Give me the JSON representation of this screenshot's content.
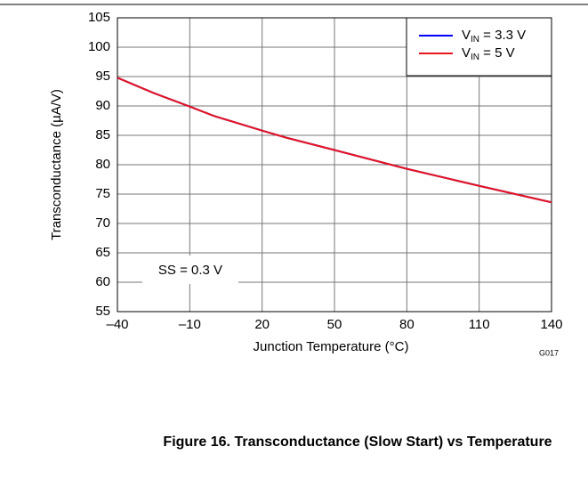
{
  "chart_data": {
    "type": "line",
    "xlabel": "Junction Temperature (°C)",
    "ylabel": "Transconductance (µA/V)",
    "annotation": "SS = 0.3 V",
    "figure_id": "G017",
    "caption": "Figure 16. Transconductance (Slow Start) vs Temperature",
    "x": [
      -40,
      -25,
      -10,
      0,
      20,
      30,
      50,
      80,
      110,
      140
    ],
    "series": [
      {
        "name": "VIN = 3.3 V",
        "color": "#0000ff",
        "values": [
          94.8,
          92.2,
          89.9,
          88.3,
          85.8,
          84.6,
          82.5,
          79.3,
          76.4,
          73.6
        ]
      },
      {
        "name": "VIN = 5 V",
        "color": "#e8141e",
        "values": [
          94.8,
          92.2,
          89.9,
          88.3,
          85.8,
          84.6,
          82.5,
          79.3,
          76.4,
          73.6
        ]
      }
    ],
    "xlim": [
      -40,
      140
    ],
    "xticks": [
      {
        "value": -40,
        "label": "–40"
      },
      {
        "value": -10,
        "label": "–10"
      },
      20,
      50,
      80,
      110,
      140
    ],
    "ylim": [
      55,
      105
    ],
    "yticks": [
      55,
      60,
      65,
      70,
      75,
      80,
      85,
      90,
      95,
      100,
      105
    ],
    "grid": true,
    "legend": "upper right"
  }
}
